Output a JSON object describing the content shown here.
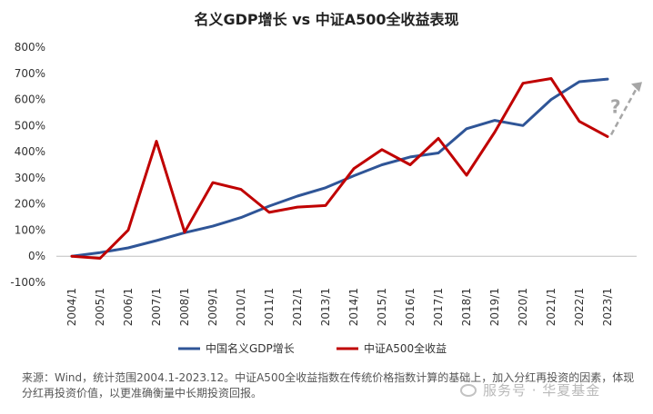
{
  "chart_data": {
    "type": "line",
    "title": "名义GDP增长 vs 中证A500全收益表现",
    "categories": [
      "2004/1",
      "2005/1",
      "2006/1",
      "2007/1",
      "2008/1",
      "2009/1",
      "2010/1",
      "2011/1",
      "2012/1",
      "2013/1",
      "2014/1",
      "2015/1",
      "2016/1",
      "2017/1",
      "2018/1",
      "2019/1",
      "2020/1",
      "2021/1",
      "2022/1",
      "2023/1"
    ],
    "y_ticks": [
      "800%",
      "700%",
      "600%",
      "500%",
      "400%",
      "300%",
      "200%",
      "100%",
      "0%",
      "-100%"
    ],
    "ylim": [
      -100,
      800
    ],
    "unit": "%",
    "grid": false,
    "series": [
      {
        "name": "中国名义GDP增长",
        "color": "#2f5597",
        "values": [
          0,
          14,
          32,
          60,
          90,
          115,
          148,
          192,
          230,
          262,
          308,
          350,
          380,
          395,
          488,
          520,
          500,
          600,
          668,
          678
        ]
      },
      {
        "name": "中证A500全收益",
        "color": "#c00000",
        "values": [
          0,
          -8,
          100,
          440,
          92,
          282,
          256,
          168,
          188,
          194,
          335,
          408,
          350,
          451,
          310,
          475,
          662,
          680,
          516,
          458
        ]
      }
    ],
    "annotation": {
      "text": "?",
      "color": "#a6a6a6",
      "from": {
        "x": "2023/1",
        "y": 458
      },
      "to": {
        "x": "2023/1+",
        "y": 660
      }
    },
    "legend_position": "bottom"
  },
  "footnote": "来源：Wind，统计范围2004.1-2023.12。中证A500全收益指数在传统价格指数计算的基础上，加入分红再投资的因素，体现分红再投资价值，以更准确衡量中长期投资回报。",
  "watermark": {
    "label": "服务号 · 华夏基金"
  }
}
